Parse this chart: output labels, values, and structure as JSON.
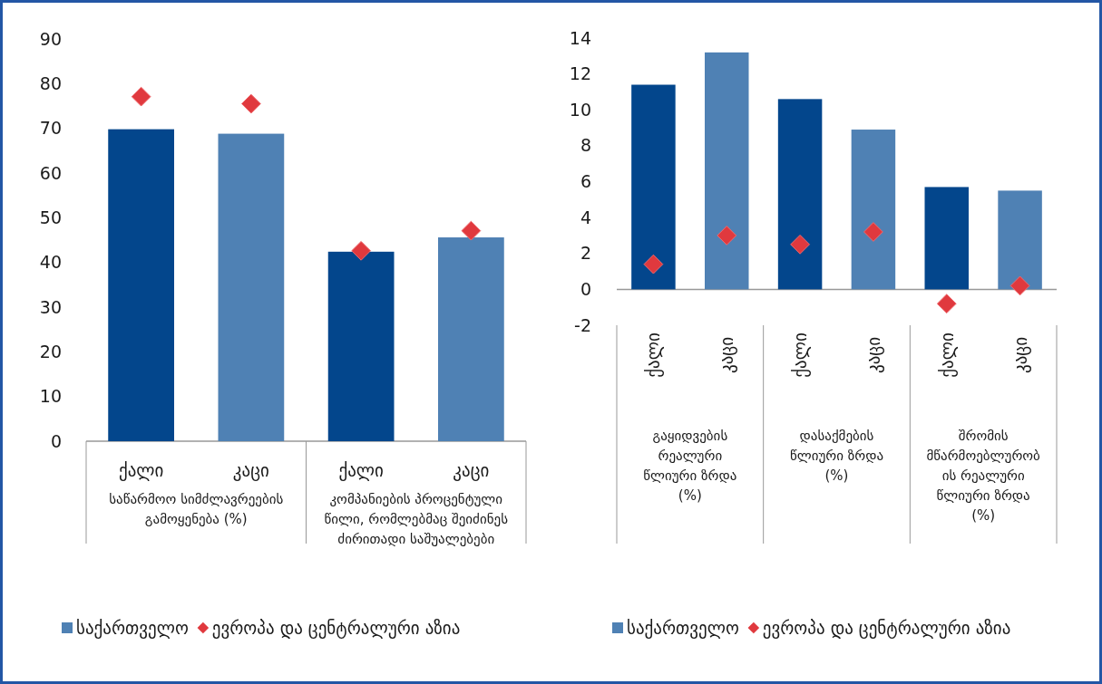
{
  "chart_data": [
    {
      "type": "bar",
      "categories": [
        "ქალი",
        "კაცი",
        "ქალი",
        "კაცი"
      ],
      "ylim": [
        0,
        90
      ],
      "yticks": [
        0,
        10,
        20,
        30,
        40,
        50,
        60,
        70,
        80,
        90
      ],
      "grid": false,
      "legend": "bottom",
      "annotations": [
        "საწარმოო სიმძლავრეების გამოყენება (%)",
        "კომპანიების პროცენტული წილი, რომლებმაც შეიძინეს ძირითადი საშუალებები"
      ],
      "series": [
        {
          "name": "საქართველო",
          "color": "#4f81b4",
          "colors": [
            "#03468c",
            "#4f81b4",
            "#03468c",
            "#4f81b4"
          ],
          "values": [
            69.8,
            68.8,
            42.4,
            45.6
          ]
        },
        {
          "type": "scatter",
          "name": "ევროპა და ცენტრალური აზია",
          "color": "#e0393e",
          "marker": "diamond",
          "values": [
            77.1,
            75.5,
            42.6,
            47.1
          ]
        }
      ]
    },
    {
      "type": "bar",
      "categories": [
        "ქალი",
        "კაცი",
        "ქალი",
        "კაცი",
        "ქალი",
        "კაცი"
      ],
      "ylim": [
        -2,
        14
      ],
      "yticks": [
        -2,
        0,
        2,
        4,
        6,
        8,
        10,
        12,
        14
      ],
      "grid": false,
      "legend": "bottom",
      "annotations": [
        "გაყიდვების რეალური წლიური ზრდა (%)",
        "დასაქმების წლიური ზრდა (%)",
        "შრომის მწარმოებლურობის რეალური წლიური ზრდა (%)"
      ],
      "series": [
        {
          "name": "საქართველო",
          "color": "#4f81b4",
          "colors": [
            "#03468c",
            "#4f81b4",
            "#03468c",
            "#4f81b4",
            "#03468c",
            "#4f81b4"
          ],
          "values": [
            11.4,
            13.2,
            10.6,
            8.9,
            5.7,
            5.5
          ]
        },
        {
          "type": "scatter",
          "name": "ევროპა და ცენტრალური აზია",
          "color": "#e0393e",
          "marker": "diamond",
          "values": [
            1.4,
            3.0,
            2.5,
            3.2,
            -0.8,
            0.2
          ]
        }
      ]
    }
  ]
}
